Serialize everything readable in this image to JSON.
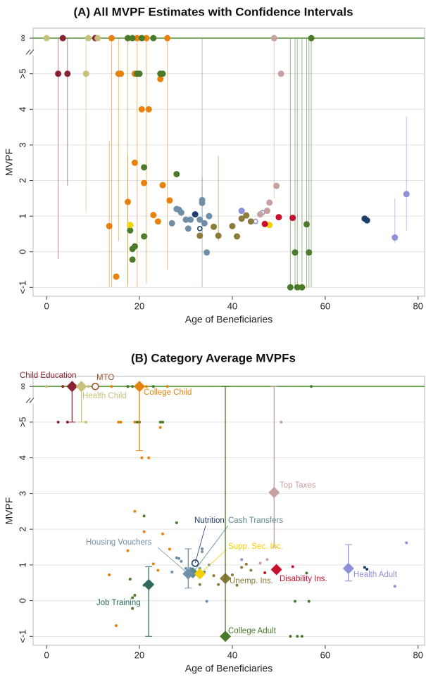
{
  "chart_data": [
    {
      "type": "scatter",
      "title": "(A) All MVPF Estimates with Confidence Intervals",
      "x_label": "Age of Beneficiaries",
      "y_label": "MVPF",
      "xlim": [
        -2.9,
        81.4
      ],
      "ylim": [
        -1.25,
        6.28
      ],
      "xticks": [
        0,
        20,
        40,
        60,
        80
      ],
      "yticks": [
        {
          "value": -1,
          "label": "<-1"
        },
        0,
        1,
        2,
        3,
        4,
        {
          "value": 5,
          "label": ">5"
        },
        {
          "value": 6,
          "label": "∞"
        }
      ],
      "grid": true,
      "top_tick_line_color": "#5a9e3e",
      "series": [
        {
          "color": "#8b2332",
          "marker": "filled",
          "x": [
            3.5,
            10.5,
            2.5,
            4.5
          ],
          "values": [
            6,
            6,
            5,
            5
          ],
          "lower": [
            null,
            null,
            -0.2,
            1.85
          ],
          "upper": [
            null,
            null,
            6,
            6
          ]
        },
        {
          "color": "#c9c07c",
          "marker": "filled",
          "x": [
            0,
            9,
            11,
            8.5
          ],
          "values": [
            6,
            6,
            6,
            5
          ],
          "lower": [
            null,
            null,
            null,
            1.1
          ],
          "upper": [
            null,
            null,
            null,
            6
          ]
        },
        {
          "color": "#e8820c",
          "marker": "filled",
          "x": [
            14,
            17.5,
            19.5,
            21.5,
            26,
            15.5,
            16,
            19,
            24.5,
            20.5,
            22,
            19,
            21,
            25,
            17.5,
            26.5,
            13.5,
            23,
            24,
            15
          ],
          "values": [
            6,
            6,
            6,
            6,
            6,
            5,
            5,
            5,
            4.85,
            4,
            4,
            2.5,
            1.93,
            1.87,
            1.4,
            1.44,
            0.72,
            1.03,
            0.85,
            -0.7
          ],
          "lower": [
            -1,
            -1,
            -1,
            -0.9,
            -0.5,
            0.3,
            null,
            null,
            null,
            null,
            null,
            null,
            null,
            null,
            -0.9,
            null,
            -1,
            null,
            null,
            null
          ],
          "upper": [
            6,
            6,
            6,
            6,
            6,
            6,
            null,
            null,
            null,
            null,
            null,
            null,
            null,
            null,
            2.7,
            null,
            3.1,
            null,
            null,
            null
          ]
        },
        {
          "color": "#4b7a2a",
          "marker": "filled",
          "x": [
            17.5,
            18.5,
            20.5,
            23,
            57,
            19.5,
            20,
            24.5,
            25,
            21,
            28,
            18,
            19,
            18.5,
            18.5,
            21,
            53.5,
            56.5,
            52.5,
            54,
            55,
            56
          ],
          "values": [
            6,
            6,
            6,
            6,
            6,
            5,
            5,
            5,
            5,
            2.37,
            2.18,
            0.6,
            0.15,
            0.08,
            -0.22,
            0.43,
            -0.02,
            -0.02,
            -1,
            -1,
            -1,
            0.77
          ],
          "lower": [
            null,
            null,
            null,
            null,
            -1,
            null,
            null,
            null,
            null,
            null,
            null,
            null,
            null,
            null,
            null,
            null,
            -1,
            -1,
            -1,
            -1,
            -1,
            -1
          ],
          "upper": [
            null,
            null,
            null,
            null,
            6,
            null,
            null,
            null,
            null,
            null,
            null,
            null,
            null,
            null,
            null,
            null,
            6,
            6,
            6,
            6,
            6,
            6
          ]
        },
        {
          "color": "#6f8fa8",
          "marker": "filled",
          "x": [
            30.5,
            27,
            28.5,
            29,
            30,
            31,
            33.5,
            33.5,
            34,
            34.5,
            35,
            33,
            28
          ],
          "values": [
            0.65,
            0.8,
            1.18,
            1.1,
            0.9,
            0.9,
            1.45,
            1.37,
            0.8,
            -0.02,
            1.0,
            0.9,
            1.2
          ],
          "lower": [
            null,
            null,
            null,
            null,
            null,
            null,
            -1,
            0.5,
            null,
            null,
            null,
            null,
            null
          ],
          "upper": [
            null,
            null,
            null,
            null,
            null,
            null,
            6,
            2.1,
            null,
            null,
            null,
            null,
            null
          ]
        },
        {
          "color": "#1f3f6e",
          "marker": "filled",
          "x": [
            32,
            68.5,
            69
          ],
          "values": [
            1.05,
            0.93,
            0.88
          ]
        },
        {
          "color": "#1f3f6e",
          "marker": "open",
          "x": [
            33
          ],
          "values": [
            0.65
          ]
        },
        {
          "color": "#8f8fd8",
          "marker": "open",
          "x": [
            45,
            46.5
          ],
          "values": [
            0.85,
            1.1
          ]
        },
        {
          "color": "#f5d000",
          "marker": "filled",
          "x": [
            18,
            48
          ],
          "values": [
            0.75,
            0.75
          ]
        },
        {
          "color": "#8b7a3a",
          "marker": "filled",
          "x": [
            33,
            36,
            37,
            40,
            41,
            42,
            43,
            44
          ],
          "values": [
            0.45,
            0.7,
            0.45,
            0.72,
            0.43,
            0.93,
            1.02,
            0.85
          ],
          "lower": [
            null,
            null,
            0.3,
            null,
            null,
            null,
            null,
            null
          ],
          "upper": [
            null,
            null,
            2.7,
            null,
            null,
            null,
            null,
            null
          ]
        },
        {
          "color": "#c8102e",
          "marker": "filled",
          "x": [
            47,
            50,
            53
          ],
          "values": [
            0.78,
            0.97,
            0.95
          ]
        },
        {
          "color": "#c9a0a0",
          "marker": "filled",
          "x": [
            49,
            50.5,
            49.5,
            48,
            47.5,
            46
          ],
          "values": [
            6,
            5,
            1.85,
            1.38,
            1.15,
            1.05
          ],
          "lower": [
            1.5,
            null,
            null,
            null,
            null,
            null
          ],
          "upper": [
            6,
            null,
            null,
            null,
            null,
            null
          ]
        },
        {
          "color": "#8f8fd8",
          "marker": "filled",
          "x": [
            42,
            77.5,
            75
          ],
          "values": [
            1.15,
            1.62,
            0.4
          ],
          "lower": [
            null,
            0.6,
            0.25
          ],
          "upper": [
            null,
            3.8,
            1.5
          ]
        }
      ]
    },
    {
      "type": "scatter",
      "title": "(B) Category Average MVPFs",
      "x_label": "Age of Beneficiaries",
      "y_label": "MVPF",
      "xlim": [
        -2.9,
        81.4
      ],
      "ylim": [
        -1.25,
        6.28
      ],
      "xticks": [
        0,
        20,
        40,
        60,
        80
      ],
      "yticks": [
        {
          "value": -1,
          "label": "<-1"
        },
        0,
        1,
        2,
        3,
        4,
        {
          "value": 5,
          "label": ">5"
        },
        {
          "value": 6,
          "label": "∞"
        }
      ],
      "grid": true,
      "top_tick_line_color": "#5a9e3e",
      "series": [
        {
          "color": "#8b2332",
          "marker": "small",
          "x": [
            3.5,
            10.5,
            2.5,
            4.5
          ],
          "values": [
            6,
            6,
            5,
            5
          ]
        },
        {
          "color": "#c9c07c",
          "marker": "small",
          "x": [
            0,
            9,
            11,
            8.5
          ],
          "values": [
            6,
            6,
            6,
            5
          ]
        },
        {
          "color": "#e8820c",
          "marker": "small",
          "x": [
            14,
            17.5,
            19.5,
            21.5,
            26,
            15.5,
            16,
            19,
            24.5,
            20.5,
            22,
            19,
            21,
            25,
            17.5,
            26.5,
            13.5,
            23,
            24,
            15
          ],
          "values": [
            6,
            6,
            6,
            6,
            6,
            5,
            5,
            5,
            4.85,
            4,
            4,
            2.5,
            1.93,
            1.87,
            1.4,
            1.44,
            0.72,
            1.03,
            0.85,
            -0.7
          ]
        },
        {
          "color": "#4b7a2a",
          "marker": "small",
          "x": [
            17.5,
            18.5,
            20.5,
            23,
            57,
            19.5,
            20,
            24.5,
            25,
            21,
            28,
            18,
            19,
            18.5,
            18.5,
            21,
            53.5,
            56.5,
            52.5,
            54,
            55,
            56
          ],
          "values": [
            6,
            6,
            6,
            6,
            6,
            5,
            5,
            5,
            5,
            2.37,
            2.18,
            0.6,
            0.15,
            0.08,
            -0.22,
            0.43,
            -0.02,
            -0.02,
            -1,
            -1,
            -1,
            0.77
          ]
        },
        {
          "color": "#6f8fa8",
          "marker": "small",
          "x": [
            30.5,
            27,
            28.5,
            29,
            30,
            31,
            33.5,
            33.5,
            34,
            34.5,
            35,
            33,
            28
          ],
          "values": [
            0.65,
            0.8,
            1.18,
            1.1,
            0.9,
            0.9,
            1.45,
            1.37,
            0.8,
            -0.02,
            1.0,
            0.9,
            1.2
          ]
        },
        {
          "color": "#1f3f6e",
          "marker": "small",
          "x": [
            68.5,
            69
          ],
          "values": [
            0.93,
            0.88
          ]
        },
        {
          "color": "#8b7a3a",
          "marker": "small",
          "x": [
            33,
            36,
            37,
            40,
            41,
            42,
            43,
            44
          ],
          "values": [
            0.45,
            0.7,
            0.45,
            0.72,
            0.43,
            0.93,
            1.02,
            0.85
          ]
        },
        {
          "color": "#c8102e",
          "marker": "small",
          "x": [
            47,
            53
          ],
          "values": [
            0.78,
            0.95
          ]
        },
        {
          "color": "#c9a0a0",
          "marker": "small",
          "x": [
            50.5,
            47.5,
            46
          ],
          "values": [
            5,
            1.15,
            1.05
          ]
        },
        {
          "color": "#8f8fd8",
          "marker": "small",
          "x": [
            42,
            77.5,
            75
          ],
          "values": [
            1.15,
            1.62,
            0.4
          ]
        },
        {
          "name": "Child Education",
          "color": "#8b2332",
          "marker": "diamond",
          "x": [
            5.5
          ],
          "values": [
            6
          ],
          "lower": [
            5
          ],
          "upper": [
            6
          ]
        },
        {
          "name": "Health Child",
          "color": "#c9c07c",
          "marker": "diamond",
          "x": [
            7.5
          ],
          "values": [
            6
          ],
          "lower": [
            5
          ],
          "upper": [
            6
          ]
        },
        {
          "name": "MTO",
          "color": "#a0522d",
          "marker": "open",
          "x": [
            10.5
          ],
          "values": [
            6
          ]
        },
        {
          "name": "College Child",
          "color": "#e8820c",
          "marker": "diamond",
          "x": [
            20
          ],
          "values": [
            6
          ],
          "lower": [
            4.2
          ],
          "upper": [
            6
          ]
        },
        {
          "name": "Top Taxes",
          "color": "#c9a0a0",
          "marker": "diamond",
          "x": [
            49
          ],
          "values": [
            3.03
          ],
          "lower": [
            1.5
          ],
          "upper": [
            6
          ]
        },
        {
          "name": "Nutrition",
          "color": "#1f3f6e",
          "marker": "open",
          "x": [
            32
          ],
          "values": [
            1.05
          ]
        },
        {
          "name": "Cash Transfers",
          "color": "#5b8a8a",
          "marker": "diamond",
          "x": [
            31.5
          ],
          "values": [
            0.78
          ]
        },
        {
          "name": "Housing Vouchers",
          "color": "#6f8fa8",
          "marker": "diamond",
          "x": [
            30.5
          ],
          "values": [
            0.75
          ],
          "lower": [
            0.35
          ],
          "upper": [
            1.45
          ]
        },
        {
          "name": "Supp. Sec. Inc.",
          "color": "#f5d000",
          "marker": "diamond",
          "x": [
            33
          ],
          "values": [
            0.75
          ]
        },
        {
          "name": "Job Training",
          "color": "#2e6b5e",
          "marker": "diamond",
          "x": [
            22
          ],
          "values": [
            0.45
          ],
          "lower": [
            -1
          ],
          "upper": [
            0.95
          ]
        },
        {
          "name": "Unemp. Ins.",
          "color": "#8b7a3a",
          "marker": "diamond",
          "x": [
            38.5
          ],
          "values": [
            0.62
          ]
        },
        {
          "name": "Disability Ins.",
          "color": "#c8102e",
          "marker": "diamond",
          "x": [
            49.5
          ],
          "values": [
            0.87
          ]
        },
        {
          "name": "Health Adult",
          "color": "#8f8fd8",
          "marker": "diamond",
          "x": [
            65
          ],
          "values": [
            0.9
          ],
          "lower": [
            0.55
          ],
          "upper": [
            1.57
          ]
        },
        {
          "name": "College Adult",
          "color": "#4b7a2a",
          "marker": "diamond",
          "x": [
            38.5
          ],
          "values": [
            -1
          ],
          "lower": [
            -1
          ],
          "upper": [
            6
          ]
        }
      ]
    }
  ]
}
